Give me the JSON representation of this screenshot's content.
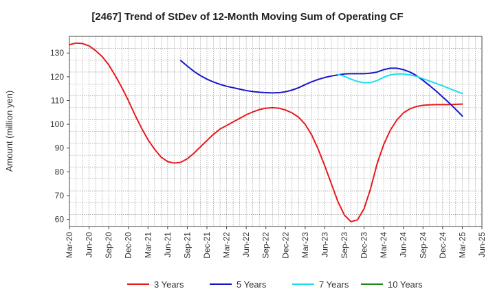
{
  "chart_data": {
    "type": "line",
    "title": "[2467]  Trend of StDev of 12-Month Moving Sum of Operating CF",
    "ylabel": "Amount (million yen)",
    "xlabel": "",
    "ylim": [
      57,
      137
    ],
    "yticks": [
      60,
      70,
      80,
      90,
      100,
      110,
      120,
      130
    ],
    "x_ticks": [
      "Mar-20",
      "Jun-20",
      "Sep-20",
      "Dec-20",
      "Mar-21",
      "Jun-21",
      "Sep-21",
      "Dec-21",
      "Mar-22",
      "Jun-22",
      "Sep-22",
      "Dec-22",
      "Mar-23",
      "Jun-23",
      "Sep-23",
      "Dec-23",
      "Mar-24",
      "Jun-24",
      "Sep-24",
      "Dec-24",
      "Mar-25",
      "Jun-25"
    ],
    "grid": true,
    "legend_position": "bottom",
    "series": [
      {
        "name": "3 Years",
        "color": "#e8191b",
        "values": [
          [
            "Mar-20",
            133.5
          ],
          [
            "Apr-20",
            134.2
          ],
          [
            "May-20",
            134.0
          ],
          [
            "Jun-20",
            133.0
          ],
          [
            "Jul-20",
            131.0
          ],
          [
            "Aug-20",
            128.5
          ],
          [
            "Sep-20",
            125.0
          ],
          [
            "Oct-20",
            120.5
          ],
          [
            "Nov-20",
            115.5
          ],
          [
            "Dec-20",
            110.0
          ],
          [
            "Jan-21",
            104.0
          ],
          [
            "Feb-21",
            98.5
          ],
          [
            "Mar-21",
            93.5
          ],
          [
            "Apr-21",
            89.5
          ],
          [
            "May-21",
            86.2
          ],
          [
            "Jun-21",
            84.3
          ],
          [
            "Jul-21",
            83.7
          ],
          [
            "Aug-21",
            84.0
          ],
          [
            "Sep-21",
            85.5
          ],
          [
            "Oct-21",
            87.8
          ],
          [
            "Nov-21",
            90.5
          ],
          [
            "Dec-21",
            93.2
          ],
          [
            "Jan-22",
            95.8
          ],
          [
            "Feb-22",
            98.0
          ],
          [
            "Mar-22",
            99.5
          ],
          [
            "Apr-22",
            101.0
          ],
          [
            "May-22",
            102.5
          ],
          [
            "Jun-22",
            104.0
          ],
          [
            "Jul-22",
            105.2
          ],
          [
            "Aug-22",
            106.2
          ],
          [
            "Sep-22",
            106.8
          ],
          [
            "Oct-22",
            107.0
          ],
          [
            "Nov-22",
            106.8
          ],
          [
            "Dec-22",
            106.0
          ],
          [
            "Jan-23",
            104.8
          ],
          [
            "Feb-23",
            103.0
          ],
          [
            "Mar-23",
            100.0
          ],
          [
            "Apr-23",
            95.5
          ],
          [
            "May-23",
            89.5
          ],
          [
            "Jun-23",
            82.5
          ],
          [
            "Jul-23",
            75.0
          ],
          [
            "Aug-23",
            67.5
          ],
          [
            "Sep-23",
            61.8
          ],
          [
            "Oct-23",
            59.0
          ],
          [
            "Nov-23",
            59.8
          ],
          [
            "Dec-23",
            64.5
          ],
          [
            "Jan-24",
            73.0
          ],
          [
            "Feb-24",
            83.5
          ],
          [
            "Mar-24",
            91.5
          ],
          [
            "Apr-24",
            97.5
          ],
          [
            "May-24",
            101.8
          ],
          [
            "Jun-24",
            104.8
          ],
          [
            "Jul-24",
            106.5
          ],
          [
            "Aug-24",
            107.5
          ],
          [
            "Sep-24",
            108.0
          ],
          [
            "Oct-24",
            108.2
          ],
          [
            "Nov-24",
            108.3
          ],
          [
            "Dec-24",
            108.3
          ],
          [
            "Jan-25",
            108.3
          ],
          [
            "Feb-25",
            108.4
          ],
          [
            "Mar-25",
            108.5
          ]
        ]
      },
      {
        "name": "5 Years",
        "color": "#1515c8",
        "values": [
          [
            "Aug-21",
            126.8
          ],
          [
            "Sep-21",
            124.5
          ],
          [
            "Oct-21",
            122.3
          ],
          [
            "Nov-21",
            120.5
          ],
          [
            "Dec-21",
            119.0
          ],
          [
            "Jan-22",
            117.8
          ],
          [
            "Feb-22",
            116.8
          ],
          [
            "Mar-22",
            116.0
          ],
          [
            "Apr-22",
            115.4
          ],
          [
            "May-22",
            114.8
          ],
          [
            "Jun-22",
            114.2
          ],
          [
            "Jul-22",
            113.8
          ],
          [
            "Aug-22",
            113.5
          ],
          [
            "Sep-22",
            113.3
          ],
          [
            "Oct-22",
            113.2
          ],
          [
            "Nov-22",
            113.3
          ],
          [
            "Dec-22",
            113.7
          ],
          [
            "Jan-23",
            114.4
          ],
          [
            "Feb-23",
            115.4
          ],
          [
            "Mar-23",
            116.7
          ],
          [
            "Apr-23",
            117.9
          ],
          [
            "May-23",
            118.9
          ],
          [
            "Jun-23",
            119.7
          ],
          [
            "Jul-23",
            120.3
          ],
          [
            "Aug-23",
            120.8
          ],
          [
            "Sep-23",
            121.2
          ],
          [
            "Oct-23",
            121.3
          ],
          [
            "Nov-23",
            121.3
          ],
          [
            "Dec-23",
            121.3
          ],
          [
            "Jan-24",
            121.5
          ],
          [
            "Feb-24",
            122.0
          ],
          [
            "Mar-24",
            123.0
          ],
          [
            "Apr-24",
            123.6
          ],
          [
            "May-24",
            123.6
          ],
          [
            "Jun-24",
            123.0
          ],
          [
            "Jul-24",
            122.0
          ],
          [
            "Aug-24",
            120.5
          ],
          [
            "Sep-24",
            118.5
          ],
          [
            "Oct-24",
            116.3
          ],
          [
            "Nov-24",
            114.0
          ],
          [
            "Dec-24",
            111.5
          ],
          [
            "Jan-25",
            109.0
          ],
          [
            "Feb-25",
            106.3
          ],
          [
            "Mar-25",
            103.5
          ]
        ]
      },
      {
        "name": "7 Years",
        "color": "#19e0f0",
        "values": [
          [
            "Aug-23",
            121.0
          ],
          [
            "Sep-23",
            120.2
          ],
          [
            "Oct-23",
            119.0
          ],
          [
            "Nov-23",
            118.0
          ],
          [
            "Dec-23",
            117.5
          ],
          [
            "Jan-24",
            117.6
          ],
          [
            "Feb-24",
            118.4
          ],
          [
            "Mar-24",
            119.8
          ],
          [
            "Apr-24",
            120.8
          ],
          [
            "May-24",
            121.2
          ],
          [
            "Jun-24",
            121.2
          ],
          [
            "Jul-24",
            120.8
          ],
          [
            "Aug-24",
            120.2
          ],
          [
            "Sep-24",
            119.2
          ],
          [
            "Oct-24",
            118.2
          ],
          [
            "Nov-24",
            117.2
          ],
          [
            "Dec-24",
            116.2
          ],
          [
            "Jan-25",
            115.1
          ],
          [
            "Feb-25",
            114.0
          ],
          [
            "Mar-25",
            113.0
          ]
        ]
      },
      {
        "name": "10 Years",
        "color": "#1a8a1a",
        "values": []
      }
    ]
  }
}
